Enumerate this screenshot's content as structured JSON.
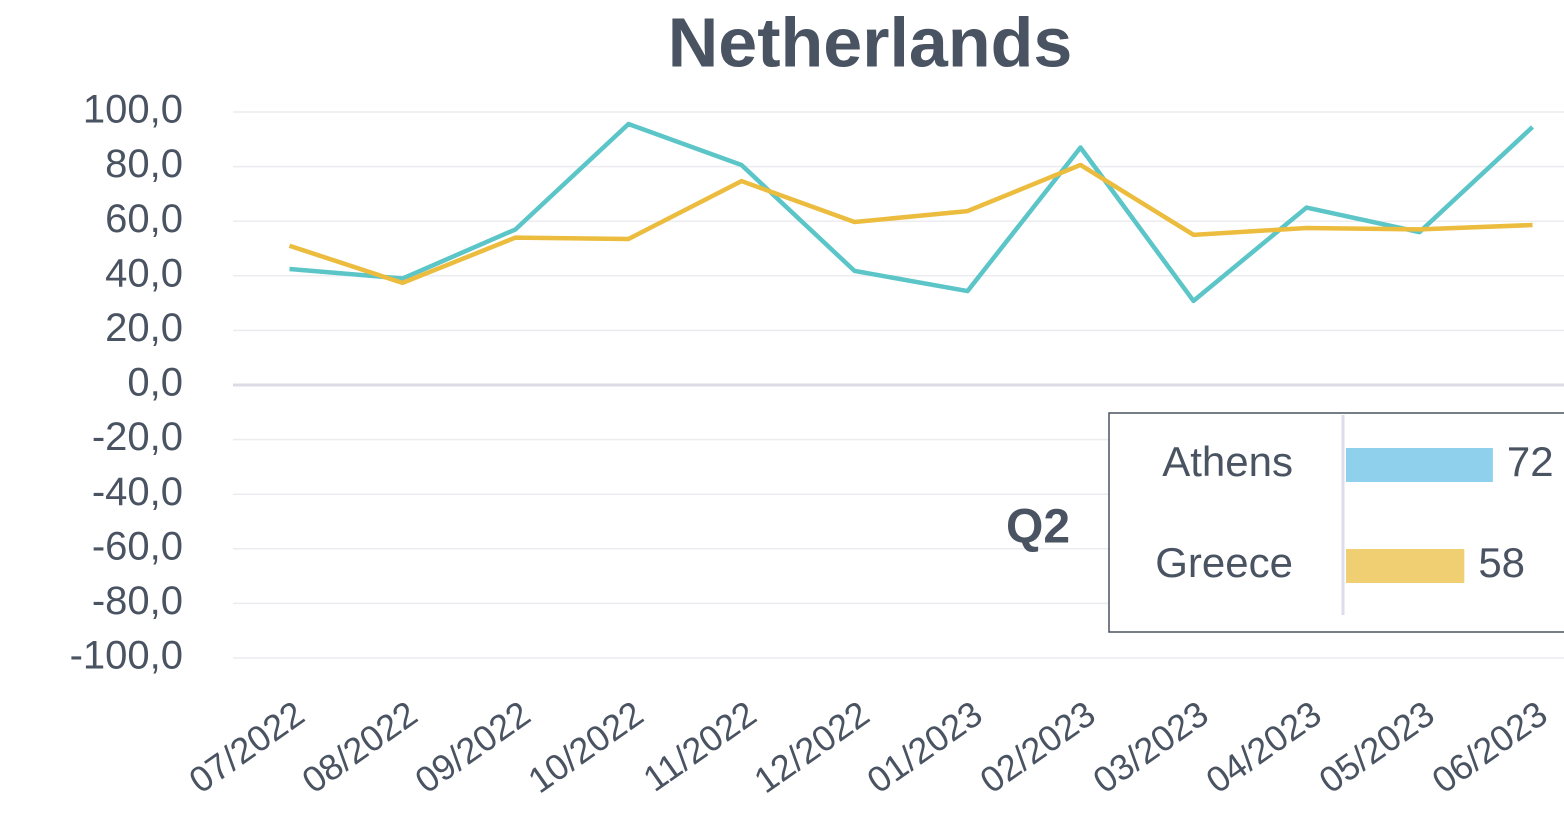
{
  "chart_data": [
    {
      "type": "line",
      "title": "Netherlands",
      "categories": [
        "07/2022",
        "08/2022",
        "09/2022",
        "10/2022",
        "11/2022",
        "12/2022",
        "01/2023",
        "02/2023",
        "03/2023",
        "04/2023",
        "05/2023",
        "06/2023"
      ],
      "series": [
        {
          "name": "Athens",
          "color": "#5bc5c8",
          "values": [
            42.5,
            39,
            57,
            95.6,
            80.6,
            41.8,
            34.4,
            87,
            30.8,
            65,
            56,
            94.5
          ]
        },
        {
          "name": "Greece",
          "color": "#ecbc3e",
          "values": [
            51,
            37.4,
            54,
            53.5,
            74.7,
            59.7,
            63.7,
            80.6,
            55,
            57.5,
            57,
            58.6
          ]
        }
      ],
      "ylim": [
        -100,
        100
      ],
      "yticks": [
        {
          "value": -100,
          "label": "-100,0"
        },
        {
          "value": -80,
          "label": "-80,0"
        },
        {
          "value": -60,
          "label": "-60,0"
        },
        {
          "value": -40,
          "label": "-40,0"
        },
        {
          "value": -20,
          "label": "-20,0"
        },
        {
          "value": 0,
          "label": "0,0"
        },
        {
          "value": 20,
          "label": "20,0"
        },
        {
          "value": 40,
          "label": "40,0"
        },
        {
          "value": 60,
          "label": "60,0"
        },
        {
          "value": 80,
          "label": "80,0"
        },
        {
          "value": 100,
          "label": "100,0"
        }
      ],
      "grid": true
    },
    {
      "type": "bar",
      "title": "Q2",
      "categories": [
        "Athens",
        "Greece"
      ],
      "values": [
        72,
        58
      ],
      "colors": [
        "#8fd0ec",
        "#f0cf73"
      ]
    }
  ]
}
